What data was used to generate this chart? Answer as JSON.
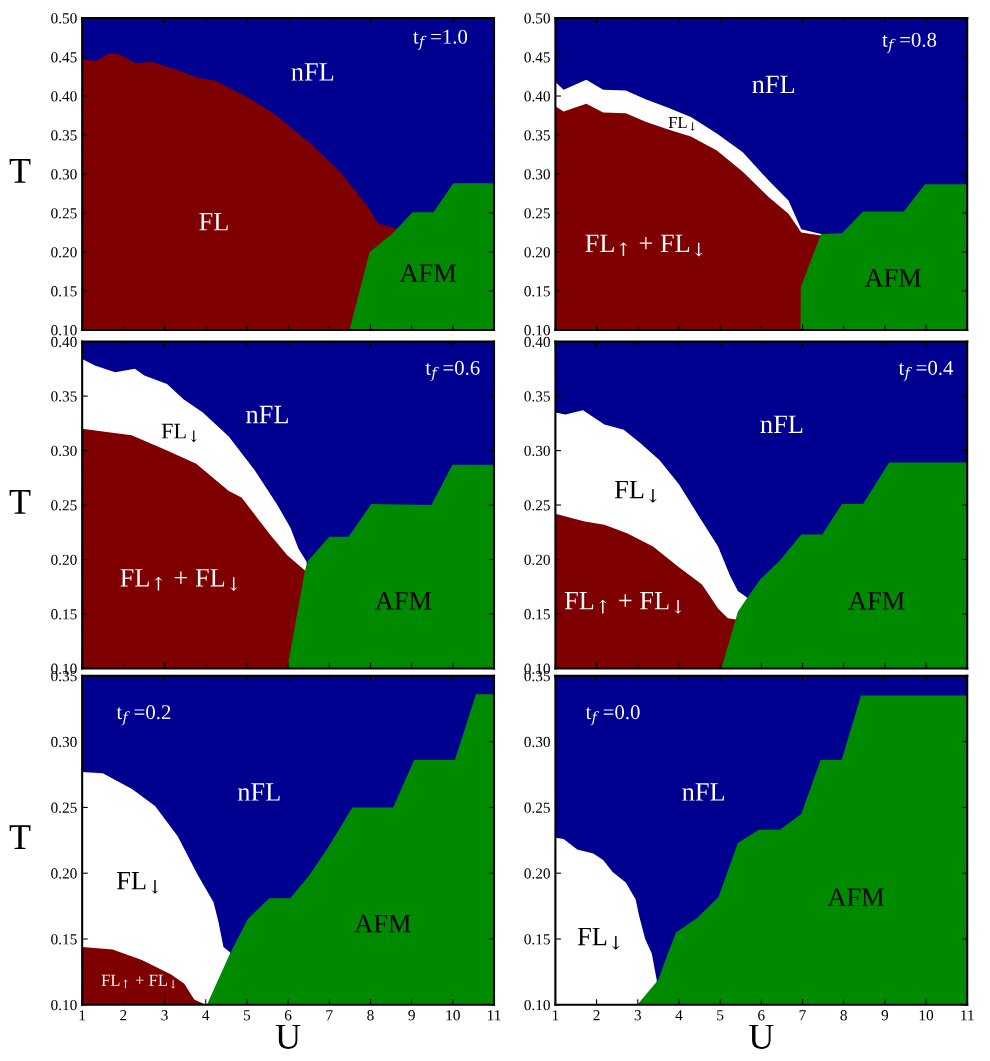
{
  "chart_data": [
    {
      "type": "area",
      "ylabel": "T",
      "xlim": [
        1,
        11
      ],
      "ylim": [
        0.1,
        0.5
      ],
      "tick_labels": "y",
      "bands": [
        {
          "axis": "y",
          "from": 0.1,
          "to": 0.5,
          "color": "#000090"
        }
      ],
      "xticks": [
        1,
        2,
        3,
        4,
        5,
        6,
        7,
        8,
        9,
        10,
        11
      ],
      "yticks": [
        {
          "value": 0.1,
          "label": "0.10"
        },
        {
          "value": 0.15,
          "label": "0.15"
        },
        {
          "value": 0.2,
          "label": "0.20"
        },
        {
          "value": 0.25,
          "label": "0.25"
        },
        {
          "value": 0.3,
          "label": "0.30"
        },
        {
          "value": 0.35,
          "label": "0.35"
        },
        {
          "value": 0.4,
          "label": "0.40"
        },
        {
          "value": 0.45,
          "label": "0.45"
        },
        {
          "value": 0.5,
          "label": "0.50"
        }
      ],
      "series": [
        {
          "color": "#7f0000",
          "x": [
            1,
            1.32,
            1.67,
            1.87,
            2.31,
            2.67,
            3.34,
            3.82,
            4.21,
            4.93,
            5.64,
            6.6,
            7.31,
            7.94,
            8.18,
            8.66
          ],
          "values": [
            0.447,
            0.445,
            0.455,
            0.454,
            0.442,
            0.444,
            0.433,
            0.423,
            0.42,
            0.401,
            0.378,
            0.337,
            0.3,
            0.258,
            0.237,
            0.229
          ]
        },
        {
          "color": "#008a00",
          "x": [
            7.49,
            7.98,
            8.54,
            9.02,
            9.53,
            10.01,
            11
          ],
          "values": [
            0.1,
            0.2,
            0.224,
            0.251,
            0.251,
            0.288,
            0.288
          ]
        }
      ],
      "annotations": [
        "nFL",
        "FL",
        "AFM",
        "t$_{f}$ =1.0"
      ]
    },
    {
      "type": "area",
      "xlim": [
        1,
        11
      ],
      "ylim": [
        0.1,
        0.5
      ],
      "tick_labels": "y",
      "bands": [
        {
          "axis": "y",
          "from": 0.1,
          "to": 0.5,
          "color": "#000090"
        }
      ],
      "xticks": [
        1,
        2,
        3,
        4,
        5,
        6,
        7,
        8,
        9,
        10,
        11
      ],
      "yticks": [
        {
          "value": 0.1,
          "label": "0.10"
        },
        {
          "value": 0.15,
          "label": "0.15"
        },
        {
          "value": 0.2,
          "label": "0.20"
        },
        {
          "value": 0.25,
          "label": "0.25"
        },
        {
          "value": 0.3,
          "label": "0.30"
        },
        {
          "value": 0.35,
          "label": "0.35"
        },
        {
          "value": 0.4,
          "label": "0.40"
        },
        {
          "value": 0.45,
          "label": "0.45"
        },
        {
          "value": 0.5,
          "label": "0.50"
        }
      ],
      "series": [
        {
          "color": "#ffffff",
          "x": [
            1,
            1.2,
            1.75,
            2.16,
            2.71,
            3.19,
            3.74,
            4.29,
            4.92,
            5.55,
            6.19,
            6.66,
            6.97,
            7.45
          ],
          "values": [
            0.418,
            0.408,
            0.421,
            0.408,
            0.407,
            0.396,
            0.385,
            0.373,
            0.352,
            0.328,
            0.291,
            0.266,
            0.229,
            0.223
          ]
        },
        {
          "color": "#7f0000",
          "x": [
            1,
            1.2,
            1.75,
            2.16,
            2.71,
            3.19,
            3.74,
            4.29,
            4.92,
            5.55,
            6.19,
            6.66,
            6.97,
            7.45
          ],
          "values": [
            0.387,
            0.38,
            0.39,
            0.379,
            0.378,
            0.367,
            0.357,
            0.348,
            0.33,
            0.303,
            0.27,
            0.249,
            0.225,
            0.221
          ]
        },
        {
          "color": "#008a00",
          "x": [
            6.95,
            6.96,
            7.45,
            7.96,
            8.47,
            9.46,
            9.97,
            11
          ],
          "values": [
            0.1,
            0.155,
            0.223,
            0.224,
            0.252,
            0.252,
            0.287,
            0.287
          ]
        }
      ],
      "annotations": [
        "nFL",
        "FL$_{↓}$",
        "FL$_{↑}$ + FL$_{↓}$",
        "AFM",
        "t$_{f}$ =0.8"
      ]
    },
    {
      "type": "area",
      "ylabel": "T",
      "xlim": [
        1,
        11
      ],
      "ylim": [
        0.1,
        0.4
      ],
      "tick_labels": "y",
      "bands": [
        {
          "axis": "y",
          "from": 0.1,
          "to": 0.4,
          "color": "#000090"
        }
      ],
      "xticks": [
        1,
        2,
        3,
        4,
        5,
        6,
        7,
        8,
        9,
        10,
        11
      ],
      "yticks": [
        {
          "value": 0.1,
          "label": "0.10"
        },
        {
          "value": 0.15,
          "label": "0.15"
        },
        {
          "value": 0.2,
          "label": "0.20"
        },
        {
          "value": 0.25,
          "label": "0.25"
        },
        {
          "value": 0.3,
          "label": "0.30"
        },
        {
          "value": 0.35,
          "label": "0.35"
        },
        {
          "value": 0.4,
          "label": "0.40"
        }
      ],
      "series": [
        {
          "color": "#ffffff",
          "x": [
            1,
            1.31,
            1.8,
            2.28,
            2.51,
            3.06,
            3.46,
            3.93,
            4.56,
            5.19,
            5.74,
            6.06,
            6.25,
            6.45
          ],
          "values": [
            0.384,
            0.378,
            0.372,
            0.375,
            0.369,
            0.361,
            0.347,
            0.335,
            0.313,
            0.282,
            0.25,
            0.229,
            0.21,
            0.198
          ]
        },
        {
          "color": "#7f0000",
          "x": [
            1,
            1.41,
            2.2,
            3.06,
            3.77,
            4.56,
            4.87,
            5.58,
            5.98,
            6.41
          ],
          "values": [
            0.32,
            0.318,
            0.314,
            0.3,
            0.288,
            0.263,
            0.257,
            0.222,
            0.204,
            0.19
          ]
        },
        {
          "color": "#008a00",
          "x": [
            5.98,
            6.41,
            6.49,
            7,
            7.47,
            8.02,
            9.48,
            9.99,
            11
          ],
          "values": [
            0.1,
            0.19,
            0.199,
            0.221,
            0.221,
            0.251,
            0.25,
            0.287,
            0.287
          ]
        }
      ],
      "annotations": [
        "nFL",
        "FL$_{↓}$",
        "FL$_{↑}$ + FL$_{↓}$",
        "AFM",
        "t$_{f}$ =0.6"
      ]
    },
    {
      "type": "area",
      "xlim": [
        1,
        11
      ],
      "ylim": [
        0.1,
        0.4
      ],
      "tick_labels": "y",
      "bands": [
        {
          "axis": "y",
          "from": 0.1,
          "to": 0.4,
          "color": "#000090"
        }
      ],
      "xticks": [
        1,
        2,
        3,
        4,
        5,
        6,
        7,
        8,
        9,
        10,
        11
      ],
      "yticks": [
        {
          "value": 0.1,
          "label": "0.10"
        },
        {
          "value": 0.15,
          "label": "0.15"
        },
        {
          "value": 0.2,
          "label": "0.20"
        },
        {
          "value": 0.25,
          "label": "0.25"
        },
        {
          "value": 0.3,
          "label": "0.30"
        },
        {
          "value": 0.35,
          "label": "0.35"
        },
        {
          "value": 0.4,
          "label": "0.40"
        }
      ],
      "series": [
        {
          "color": "#ffffff",
          "x": [
            1,
            1.24,
            1.67,
            2.19,
            2.66,
            3.06,
            3.53,
            4,
            4.48,
            4.95,
            5.23,
            5.43,
            5.66
          ],
          "values": [
            0.335,
            0.333,
            0.337,
            0.324,
            0.319,
            0.307,
            0.291,
            0.269,
            0.24,
            0.212,
            0.186,
            0.171,
            0.165
          ]
        },
        {
          "color": "#7f0000",
          "x": [
            1,
            1.71,
            2.19,
            2.74,
            3.37,
            4,
            4.56,
            4.95,
            5.19,
            5.39
          ],
          "values": [
            0.242,
            0.235,
            0.232,
            0.224,
            0.212,
            0.193,
            0.177,
            0.155,
            0.146,
            0.145
          ]
        },
        {
          "color": "#008a00",
          "x": [
            5.03,
            5.43,
            5.66,
            5.98,
            6.45,
            6.97,
            7.48,
            7.96,
            8.47,
            9.1,
            11
          ],
          "values": [
            0.1,
            0.152,
            0.165,
            0.182,
            0.199,
            0.223,
            0.223,
            0.251,
            0.251,
            0.289,
            0.289
          ]
        }
      ],
      "annotations": [
        "nFL",
        "FL$_{↓}$",
        "FL$_{↑}$ + FL$_{↓}$",
        "AFM",
        "t$_{f}$ =0.4"
      ]
    },
    {
      "type": "area",
      "xlabel": "U",
      "ylabel": "T",
      "xlim": [
        1,
        11
      ],
      "ylim": [
        0.1,
        0.35
      ],
      "bands": [
        {
          "axis": "y",
          "from": 0.1,
          "to": 0.35,
          "color": "#000090"
        }
      ],
      "xticks": [
        1,
        2,
        3,
        4,
        5,
        6,
        7,
        8,
        9,
        10,
        11
      ],
      "yticks": [
        {
          "value": 0.1,
          "label": "0.10"
        },
        {
          "value": 0.15,
          "label": "0.15"
        },
        {
          "value": 0.2,
          "label": "0.20"
        },
        {
          "value": 0.25,
          "label": "0.25"
        },
        {
          "value": 0.3,
          "label": "0.30"
        },
        {
          "value": 0.35,
          "label": "0.35"
        }
      ],
      "series": [
        {
          "color": "#ffffff",
          "x": [
            1,
            1.5,
            2.21,
            2.77,
            3.32,
            3.8,
            4.19,
            4.31,
            4.43,
            4.59
          ],
          "values": [
            0.277,
            0.276,
            0.264,
            0.251,
            0.228,
            0.199,
            0.178,
            0.163,
            0.144,
            0.14
          ]
        },
        {
          "color": "#7f0000",
          "x": [
            1,
            1.74,
            2.45,
            3.16,
            3.48,
            3.72,
            4
          ],
          "values": [
            0.144,
            0.142,
            0.134,
            0.123,
            0.116,
            0.104,
            0.1
          ]
        },
        {
          "color": "#008a00",
          "x": [
            4.03,
            4.59,
            5.02,
            5.54,
            6.05,
            6.53,
            7,
            7.56,
            8.55,
            9.06,
            10.05,
            10.56,
            11
          ],
          "values": [
            0.1,
            0.139,
            0.165,
            0.181,
            0.181,
            0.199,
            0.221,
            0.25,
            0.25,
            0.286,
            0.286,
            0.336,
            0.336
          ]
        }
      ],
      "annotations": [
        "nFL",
        "FL$_{↓}$",
        "FL$_{↑}$ + FL$_{↓}$",
        "AFM",
        "t$_{f}$ =0.2"
      ]
    },
    {
      "type": "area",
      "xlabel": "U",
      "xlim": [
        1,
        11
      ],
      "ylim": [
        0.1,
        0.35
      ],
      "bands": [
        {
          "axis": "y",
          "from": 0.1,
          "to": 0.35,
          "color": "#000090"
        }
      ],
      "xticks": [
        1,
        2,
        3,
        4,
        5,
        6,
        7,
        8,
        9,
        10,
        11
      ],
      "yticks": [
        {
          "value": 0.1,
          "label": "0.10"
        },
        {
          "value": 0.15,
          "label": "0.15"
        },
        {
          "value": 0.2,
          "label": "0.20"
        },
        {
          "value": 0.25,
          "label": "0.25"
        },
        {
          "value": 0.3,
          "label": "0.30"
        },
        {
          "value": 0.35,
          "label": "0.35"
        }
      ],
      "series": [
        {
          "color": "#ffffff",
          "x": [
            1,
            1.2,
            1.53,
            1.92,
            2.16,
            2.39,
            2.71,
            2.95,
            3.03,
            3.18,
            3.34,
            3.46
          ],
          "values": [
            0.227,
            0.226,
            0.218,
            0.215,
            0.21,
            0.201,
            0.193,
            0.18,
            0.168,
            0.15,
            0.139,
            0.119
          ]
        },
        {
          "color": "#008a00",
          "x": [
            2.99,
            3.5,
            3.73,
            3.93,
            4.44,
            4.96,
            5.43,
            5.94,
            6.45,
            6.97,
            7.44,
            7.95,
            8.42,
            11
          ],
          "values": [
            0.1,
            0.119,
            0.139,
            0.155,
            0.166,
            0.182,
            0.223,
            0.233,
            0.233,
            0.245,
            0.286,
            0.286,
            0.335,
            0.335
          ]
        }
      ],
      "annotations": [
        "nFL",
        "FL$_{↓}$",
        "AFM",
        "t$_{f}$ =0.0"
      ]
    }
  ]
}
